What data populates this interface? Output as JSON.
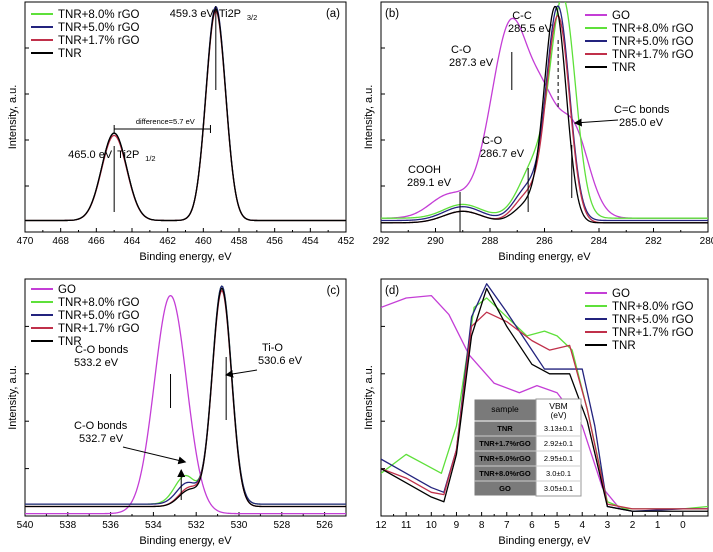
{
  "chart_data": [
    {
      "type": "line",
      "panel_label": "(a)",
      "xlabel": "Binding energy, eV",
      "ylabel": "Intensity, a.u.",
      "xlim": [
        470,
        452
      ],
      "ylim": [
        0,
        100
      ],
      "xticks": [
        "470",
        "468",
        "466",
        "464",
        "462",
        "460",
        "458",
        "456",
        "454",
        "452"
      ],
      "legend": [
        {
          "name": "TNR+8.0% rGO",
          "color": "#5ee03a"
        },
        {
          "name": "TNR+5.0% rGO",
          "color": "#23237e"
        },
        {
          "name": "TNR+1.7% rGO",
          "color": "#c0304a"
        },
        {
          "name": "TNR",
          "color": "#000000"
        }
      ],
      "series": [
        {
          "name": "TNR+8.0% rGO",
          "color": "#5ee03a",
          "baseline": 5,
          "peaks": [
            [
              459.3,
              92,
              0.55
            ],
            [
              465.0,
              38,
              0.7
            ]
          ]
        },
        {
          "name": "TNR+5.0% rGO",
          "color": "#23237e",
          "baseline": 5,
          "peaks": [
            [
              459.3,
              93,
              0.55
            ],
            [
              465.0,
              38,
              0.7
            ]
          ]
        },
        {
          "name": "TNR+1.7% rGO",
          "color": "#c0304a",
          "baseline": 5,
          "peaks": [
            [
              459.3,
              91,
              0.55
            ],
            [
              465.0,
              37,
              0.7
            ]
          ]
        },
        {
          "name": "TNR",
          "color": "#000000",
          "baseline": 5,
          "peaks": [
            [
              459.3,
              92,
              0.55
            ],
            [
              465.0,
              38,
              0.7
            ]
          ]
        }
      ],
      "annotations": {
        "peak1": "459.3 eV",
        "peak1_label": "Ti2P",
        "peak1_sub": "3/2",
        "peak2": "465.0 eV",
        "peak2_label": "Ti2P",
        "peak2_sub": "1/2",
        "difference": "difference=5.7 eV"
      }
    },
    {
      "type": "line",
      "panel_label": "(b)",
      "xlabel": "Binding energy, eV",
      "ylabel": "Intensity, a.u.",
      "xlim": [
        292,
        280
      ],
      "ylim": [
        0,
        100
      ],
      "xticks": [
        "292",
        "290",
        "288",
        "286",
        "284",
        "282",
        "280"
      ],
      "legend": [
        {
          "name": "GO",
          "color": "#c43ed6"
        },
        {
          "name": "TNR+8.0% rGO",
          "color": "#5ee03a"
        },
        {
          "name": "TNR+5.0% rGO",
          "color": "#23237e"
        },
        {
          "name": "TNR+1.7% rGO",
          "color": "#c0304a"
        },
        {
          "name": "TNR",
          "color": "#000000"
        }
      ],
      "series": [
        {
          "name": "GO",
          "color": "#c43ed6",
          "baseline": 6,
          "peaks": [
            [
              287.2,
              86,
              0.75
            ],
            [
              285.0,
              40,
              0.6
            ],
            [
              289.5,
              10,
              0.7
            ],
            [
              286.0,
              25,
              0.45
            ]
          ]
        },
        {
          "name": "TNR+8.0% rGO",
          "color": "#5ee03a",
          "baseline": 6,
          "peaks": [
            [
              285.3,
              90,
              0.45
            ],
            [
              286.3,
              24,
              0.6
            ],
            [
              289.0,
              6,
              0.7
            ]
          ]
        },
        {
          "name": "TNR+5.0% rGO",
          "color": "#23237e",
          "baseline": 5,
          "peaks": [
            [
              285.5,
              92,
              0.42
            ],
            [
              286.6,
              14,
              0.5
            ],
            [
              289.0,
              6,
              0.7
            ]
          ]
        },
        {
          "name": "TNR+1.7% rGO",
          "color": "#c0304a",
          "baseline": 4,
          "peaks": [
            [
              285.5,
              89,
              0.42
            ],
            [
              286.6,
              12,
              0.5
            ],
            [
              289.0,
              5,
              0.7
            ]
          ]
        },
        {
          "name": "TNR",
          "color": "#000000",
          "baseline": 4,
          "peaks": [
            [
              285.6,
              93,
              0.4
            ],
            [
              286.6,
              8,
              0.5
            ],
            [
              289.0,
              5,
              0.7
            ]
          ]
        }
      ],
      "annotations": {
        "cc": "C-C",
        "cc_ev": "285.5 eV",
        "co1": "C-O",
        "co1_ev": "287.3 eV",
        "co2": "C-O",
        "co2_ev": "286.7 eV",
        "cooh": "COOH",
        "cooh_ev": "289.1 eV",
        "cc_bonds": "C=C bonds",
        "cc_bonds_ev": "285.0 eV"
      }
    },
    {
      "type": "line",
      "panel_label": "(c)",
      "xlabel": "Binding energy, eV",
      "ylabel": "Intensity, a.u.",
      "xlim": [
        540,
        525
      ],
      "ylim": [
        0,
        100
      ],
      "xticks": [
        "540",
        "538",
        "536",
        "534",
        "532",
        "530",
        "528",
        "526"
      ],
      "legend": [
        {
          "name": "GO",
          "color": "#c43ed6"
        },
        {
          "name": "TNR+8.0% rGO",
          "color": "#5ee03a"
        },
        {
          "name": "TNR+5.0% rGO",
          "color": "#23237e"
        },
        {
          "name": "TNR+1.7% rGO",
          "color": "#c0304a"
        },
        {
          "name": "TNR",
          "color": "#000000"
        }
      ],
      "series": [
        {
          "name": "GO",
          "color": "#c43ed6",
          "baseline": 1,
          "peaks": [
            [
              533.2,
              92,
              0.75
            ]
          ]
        },
        {
          "name": "TNR+8.0% rGO",
          "color": "#5ee03a",
          "baseline": 5,
          "peaks": [
            [
              530.8,
              92,
              0.45
            ],
            [
              532.5,
              12,
              0.5
            ]
          ]
        },
        {
          "name": "TNR+5.0% rGO",
          "color": "#23237e",
          "baseline": 5,
          "peaks": [
            [
              530.8,
              92,
              0.45
            ],
            [
              532.4,
              9,
              0.5
            ]
          ]
        },
        {
          "name": "TNR+1.7% rGO",
          "color": "#c0304a",
          "baseline": 4,
          "peaks": [
            [
              530.8,
              91,
              0.45
            ],
            [
              532.3,
              8,
              0.5
            ]
          ]
        },
        {
          "name": "TNR",
          "color": "#000000",
          "baseline": 4,
          "peaks": [
            [
              530.8,
              92,
              0.45
            ],
            [
              532.3,
              7,
              0.5
            ]
          ]
        }
      ],
      "annotations": {
        "co_a": "C-O bonds",
        "co_a_ev": "533.2 eV",
        "tio": "Ti-O",
        "tio_ev": "530.6 eV",
        "co_b": "C-O bonds",
        "co_b_ev": "532.7 eV"
      }
    },
    {
      "type": "line",
      "panel_label": "(d)",
      "xlabel": "Binding energy, eV",
      "ylabel": "Intensity, a.u.",
      "xlim": [
        12,
        -1
      ],
      "ylim": [
        0,
        100
      ],
      "xticks": [
        "12",
        "11",
        "10",
        "9",
        "8",
        "7",
        "6",
        "5",
        "4",
        "3",
        "2",
        "1",
        "0"
      ],
      "legend": [
        {
          "name": "GO",
          "color": "#c43ed6"
        },
        {
          "name": "TNR+8.0% rGO",
          "color": "#5ee03a"
        },
        {
          "name": "TNR+5.0% rGO",
          "color": "#23237e"
        },
        {
          "name": "TNR+1.7% rGO",
          "color": "#c0304a"
        },
        {
          "name": "TNR",
          "color": "#000000"
        }
      ],
      "series": [
        {
          "name": "GO",
          "color": "#c43ed6",
          "points": [
            [
              12,
              88
            ],
            [
              11,
              92
            ],
            [
              10,
              93
            ],
            [
              9.3,
              85
            ],
            [
              8.5,
              68
            ],
            [
              7.5,
              56
            ],
            [
              6.5,
              52
            ],
            [
              5.8,
              55
            ],
            [
              5,
              52
            ],
            [
              4,
              38
            ],
            [
              3.2,
              12
            ],
            [
              2.5,
              3
            ],
            [
              1.5,
              3
            ],
            [
              0,
              3
            ],
            [
              -1,
              3
            ]
          ]
        },
        {
          "name": "TNR+8.0% rGO",
          "color": "#5ee03a",
          "points": [
            [
              12,
              18
            ],
            [
              11,
              26
            ],
            [
              10.3,
              22
            ],
            [
              9.6,
              18
            ],
            [
              9,
              38
            ],
            [
              8.3,
              88
            ],
            [
              7.8,
              92
            ],
            [
              7,
              84
            ],
            [
              6.2,
              76
            ],
            [
              5.5,
              78
            ],
            [
              5,
              76
            ],
            [
              4.4,
              70
            ],
            [
              3.8,
              45
            ],
            [
              3,
              6
            ],
            [
              2.3,
              3
            ],
            [
              1.5,
              3
            ],
            [
              0,
              3
            ],
            [
              -1,
              4
            ]
          ]
        },
        {
          "name": "TNR+5.0% rGO",
          "color": "#23237e",
          "points": [
            [
              12,
              24
            ],
            [
              11,
              18
            ],
            [
              10,
              12
            ],
            [
              9.5,
              10
            ],
            [
              9,
              28
            ],
            [
              8.4,
              84
            ],
            [
              7.8,
              98
            ],
            [
              7,
              86
            ],
            [
              6,
              70
            ],
            [
              5.5,
              62
            ],
            [
              5,
              62
            ],
            [
              4,
              62
            ],
            [
              3.5,
              38
            ],
            [
              3,
              4
            ],
            [
              2,
              2
            ],
            [
              0,
              3
            ],
            [
              -1,
              3
            ]
          ]
        },
        {
          "name": "TNR+1.7% rGO",
          "color": "#c0304a",
          "points": [
            [
              12,
              20
            ],
            [
              11,
              16
            ],
            [
              10,
              10
            ],
            [
              9.5,
              9
            ],
            [
              9,
              28
            ],
            [
              8.4,
              80
            ],
            [
              7.8,
              86
            ],
            [
              7,
              82
            ],
            [
              6,
              74
            ],
            [
              5.3,
              70
            ],
            [
              4.5,
              72
            ],
            [
              3.8,
              45
            ],
            [
              3,
              5
            ],
            [
              2,
              3
            ],
            [
              0,
              3
            ],
            [
              -1,
              3
            ]
          ]
        },
        {
          "name": "TNR",
          "color": "#000000",
          "points": [
            [
              12,
              20
            ],
            [
              11,
              14
            ],
            [
              10,
              8
            ],
            [
              9.5,
              6
            ],
            [
              9,
              26
            ],
            [
              8.4,
              76
            ],
            [
              7.8,
              96
            ],
            [
              7,
              80
            ],
            [
              6,
              64
            ],
            [
              5.3,
              60
            ],
            [
              4.5,
              60
            ],
            [
              3.8,
              40
            ],
            [
              3,
              4
            ],
            [
              2,
              2
            ],
            [
              0,
              2
            ],
            [
              -1,
              2
            ]
          ]
        }
      ],
      "table": {
        "headers": [
          "sample",
          "VBM (eV)"
        ],
        "rows": [
          [
            "TNR",
            "3.13±0.1"
          ],
          [
            "TNR+1.7%rGO",
            "2.92±0.1"
          ],
          [
            "TNR+5.0%rGO",
            "2.95±0.1"
          ],
          [
            "TNR+8.0%rGO",
            "3.0±0.1"
          ],
          [
            "GO",
            "3.05±0.1"
          ]
        ]
      }
    }
  ]
}
